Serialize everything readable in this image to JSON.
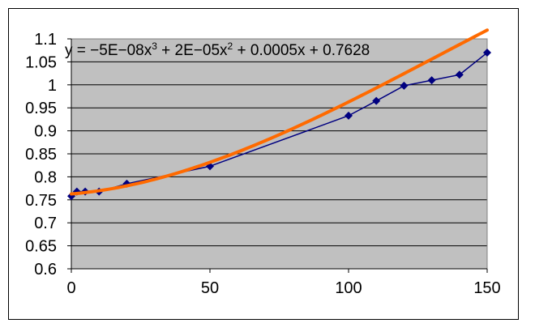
{
  "chart_data": {
    "type": "scatter",
    "title": "",
    "xlabel": "",
    "ylabel": "",
    "xlim": [
      0,
      150
    ],
    "ylim": [
      0.6,
      1.1
    ],
    "x_ticks": [
      "0",
      "50",
      "100",
      "150"
    ],
    "y_ticks": [
      "0.6",
      "0.65",
      "0.7",
      "0.75",
      "0.8",
      "0.85",
      "0.9",
      "0.95",
      "1",
      "1.05",
      "1.1"
    ],
    "grid": true,
    "plot_background": "#c0c0c0",
    "series": [
      {
        "marker": "diamond",
        "color": "#000080",
        "x": [
          0,
          2,
          5,
          10,
          20,
          50,
          100,
          110,
          120,
          130,
          140,
          150
        ],
        "y": [
          0.758,
          0.768,
          0.768,
          0.768,
          0.785,
          0.823,
          0.933,
          0.965,
          0.998,
          1.01,
          1.022,
          1.07
        ]
      }
    ],
    "trendline": {
      "type": "polynomial",
      "order": 3,
      "color": "#ff6a00",
      "coefficients": [
        -5e-08,
        2e-05,
        0.0005,
        0.7628
      ],
      "equation": {
        "prefix": "y = −5E−08x",
        "exp1": "3",
        "mid": " + 2E−05x",
        "exp2": "2",
        "suffix": " + 0.0005x + 0.7628"
      }
    }
  }
}
